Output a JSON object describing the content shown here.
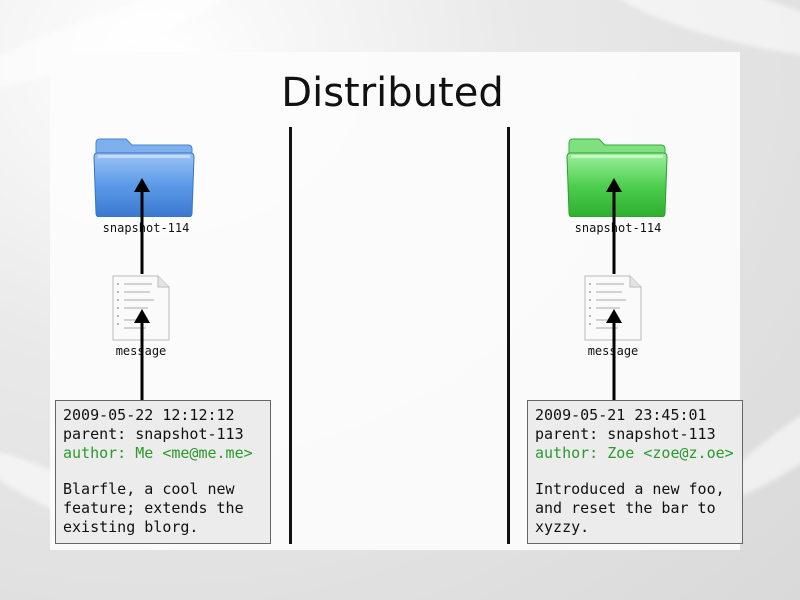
{
  "slide": {
    "title": "Distributed"
  },
  "left": {
    "folder_color": "#5c9ae8",
    "snapshot_label": "snapshot-114",
    "message_label": "message",
    "commit": {
      "date": "2009-05-22 12:12:12",
      "parent": "parent: snapshot-113",
      "author": "author: Me <me@me.me>",
      "message": "Blarfle, a cool new feature; extends the existing blorg."
    }
  },
  "right": {
    "folder_color": "#4fcf4f",
    "snapshot_label": "snapshot-114",
    "message_label": "message",
    "commit": {
      "date": "2009-05-21 23:45:01",
      "parent": "parent: snapshot-113",
      "author": "author: Zoe <zoe@z.oe>",
      "message": "Introduced a new foo, and reset the bar to xyzzy."
    }
  }
}
